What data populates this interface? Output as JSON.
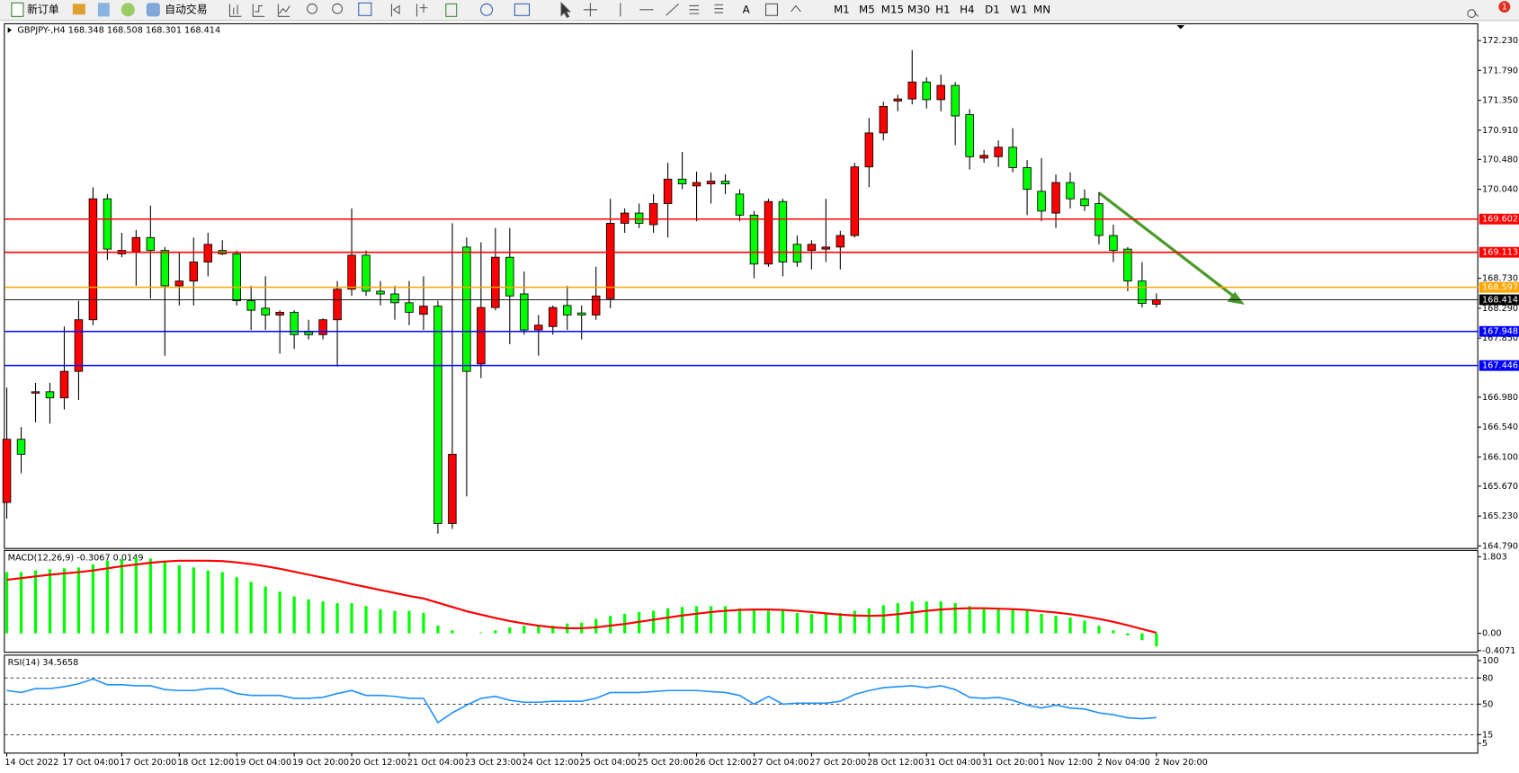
{
  "toolbar": {
    "new_order": "新订单",
    "auto_trading": "自动交易",
    "text_tool": "A",
    "timeframes": [
      "M1",
      "M5",
      "M15",
      "M30",
      "H1",
      "H4",
      "D1",
      "W1",
      "MN"
    ],
    "notifications": 1
  },
  "chart_data": [
    {
      "type": "candlestick",
      "title": "GBPJPY-,H4  168.348 168.508 168.301 168.414",
      "categories": [
        "14 Oct 2022",
        null,
        null,
        null,
        "17 Oct 04:00",
        null,
        null,
        null,
        "17 Oct 20:00",
        null,
        null,
        null,
        "18 Oct 12:00",
        null,
        null,
        null,
        "19 Oct 04:00",
        null,
        null,
        null,
        "19 Oct 20:00",
        null,
        null,
        null,
        "20 Oct 12:00",
        null,
        null,
        null,
        "21 Oct 04:00",
        null,
        null,
        null,
        "23 Oct 23:00",
        null,
        null,
        null,
        "24 Oct 12:00",
        null,
        null,
        null,
        "25 Oct 04:00",
        null,
        null,
        null,
        "25 Oct 20:00",
        null,
        null,
        null,
        "26 Oct 12:00",
        null,
        null,
        null,
        "27 Oct 04:00",
        null,
        null,
        null,
        "27 Oct 20:00",
        null,
        null,
        null,
        "28 Oct 12:00",
        null,
        null,
        null,
        "31 Oct 04:00",
        null,
        null,
        null,
        "31 Oct 20:00",
        null,
        null,
        null,
        "1 Nov 12:00",
        null,
        null,
        null,
        "2 Nov 04:00",
        null,
        null,
        null,
        "2 Nov 20:00"
      ],
      "ohlc": [
        [
          165.43,
          167.12,
          165.19,
          166.36
        ],
        [
          166.36,
          166.54,
          165.86,
          166.14
        ],
        [
          167.04,
          167.19,
          166.61,
          167.06
        ],
        [
          167.06,
          167.19,
          166.59,
          166.97
        ],
        [
          166.97,
          168.02,
          166.8,
          167.36
        ],
        [
          167.36,
          168.4,
          166.94,
          168.12
        ],
        [
          168.12,
          170.07,
          168.04,
          169.9
        ],
        [
          169.9,
          169.97,
          169.0,
          169.16
        ],
        [
          169.09,
          169.4,
          169.04,
          169.14
        ],
        [
          169.12,
          169.44,
          168.62,
          169.33
        ],
        [
          169.33,
          169.8,
          168.43,
          169.14
        ],
        [
          169.14,
          169.19,
          167.59,
          168.62
        ],
        [
          168.62,
          169.12,
          168.33,
          168.69
        ],
        [
          168.69,
          169.33,
          168.33,
          168.97
        ],
        [
          168.97,
          169.4,
          168.76,
          169.23
        ],
        [
          169.14,
          169.29,
          169.07,
          169.09
        ],
        [
          169.09,
          169.14,
          168.33,
          168.4
        ],
        [
          168.4,
          168.62,
          167.97,
          168.26
        ],
        [
          168.29,
          168.76,
          167.97,
          168.19
        ],
        [
          168.19,
          168.26,
          167.62,
          168.23
        ],
        [
          168.23,
          168.26,
          167.69,
          167.9
        ],
        [
          167.94,
          168.12,
          167.83,
          167.9
        ],
        [
          167.9,
          168.14,
          167.83,
          168.12
        ],
        [
          168.12,
          168.69,
          167.43,
          168.57
        ],
        [
          168.57,
          169.76,
          168.47,
          169.07
        ],
        [
          169.07,
          169.14,
          168.47,
          168.54
        ],
        [
          168.54,
          168.69,
          168.33,
          168.5
        ],
        [
          168.5,
          168.62,
          168.12,
          168.37
        ],
        [
          168.37,
          168.69,
          168.04,
          168.23
        ],
        [
          168.2,
          168.76,
          167.97,
          168.32
        ],
        [
          168.32,
          168.4,
          164.97,
          165.12
        ],
        [
          165.12,
          169.54,
          165.04,
          166.14
        ],
        [
          169.19,
          169.33,
          165.52,
          167.36
        ],
        [
          167.47,
          169.26,
          167.26,
          168.3
        ],
        [
          168.3,
          169.47,
          168.26,
          169.04
        ],
        [
          169.04,
          169.47,
          167.76,
          168.47
        ],
        [
          168.5,
          168.83,
          167.9,
          167.97
        ],
        [
          167.97,
          168.19,
          167.59,
          168.04
        ],
        [
          168.02,
          168.33,
          167.9,
          168.3
        ],
        [
          168.33,
          168.62,
          167.97,
          168.19
        ],
        [
          168.22,
          168.33,
          167.83,
          168.19
        ],
        [
          168.19,
          168.9,
          168.12,
          168.47
        ],
        [
          168.43,
          169.9,
          168.29,
          169.54
        ],
        [
          169.54,
          169.76,
          169.4,
          169.69
        ],
        [
          169.69,
          169.83,
          169.47,
          169.54
        ],
        [
          169.52,
          169.97,
          169.4,
          169.83
        ],
        [
          169.83,
          170.43,
          169.33,
          170.19
        ],
        [
          170.19,
          170.59,
          170.04,
          170.12
        ],
        [
          170.09,
          170.3,
          169.57,
          170.14
        ],
        [
          170.12,
          170.29,
          169.83,
          170.16
        ],
        [
          170.16,
          170.26,
          169.97,
          170.12
        ],
        [
          169.97,
          170.04,
          169.57,
          169.66
        ],
        [
          169.66,
          169.72,
          168.73,
          168.94
        ],
        [
          168.94,
          169.9,
          168.9,
          169.86
        ],
        [
          169.86,
          169.9,
          168.76,
          168.97
        ],
        [
          169.23,
          169.36,
          168.9,
          168.97
        ],
        [
          169.14,
          169.29,
          168.86,
          169.23
        ],
        [
          169.16,
          169.9,
          168.97,
          169.19
        ],
        [
          169.19,
          169.43,
          168.86,
          169.36
        ],
        [
          169.36,
          170.43,
          169.33,
          170.37
        ],
        [
          170.37,
          171.09,
          170.07,
          170.87
        ],
        [
          170.87,
          171.33,
          170.76,
          171.26
        ],
        [
          171.34,
          171.43,
          171.19,
          171.37
        ],
        [
          171.37,
          172.09,
          171.29,
          171.62
        ],
        [
          171.62,
          171.69,
          171.23,
          171.36
        ],
        [
          171.36,
          171.73,
          171.19,
          171.57
        ],
        [
          171.57,
          171.62,
          170.69,
          171.12
        ],
        [
          171.14,
          171.22,
          170.33,
          170.52
        ],
        [
          170.5,
          170.62,
          170.43,
          170.54
        ],
        [
          170.52,
          170.76,
          170.37,
          170.66
        ],
        [
          170.66,
          170.94,
          170.29,
          170.36
        ],
        [
          170.36,
          170.47,
          169.66,
          170.04
        ],
        [
          170.01,
          170.5,
          169.57,
          169.72
        ],
        [
          169.69,
          170.26,
          169.47,
          170.14
        ],
        [
          170.14,
          170.29,
          169.76,
          169.9
        ],
        [
          169.9,
          170.04,
          169.72,
          169.8
        ],
        [
          169.83,
          170.0,
          169.23,
          169.36
        ],
        [
          169.36,
          169.52,
          168.97,
          169.14
        ],
        [
          169.16,
          169.19,
          168.54,
          168.69
        ],
        [
          168.69,
          168.97,
          168.3,
          168.36
        ],
        [
          168.348,
          168.508,
          168.301,
          168.414
        ]
      ],
      "up_color": "#ff0000",
      "down_color": "#00ff00",
      "ylim": [
        164.76,
        172.47
      ],
      "yticks": [
        {
          "value": 172.23,
          "label": "172.230"
        },
        {
          "value": 171.79,
          "label": "171.790"
        },
        {
          "value": 171.35,
          "label": "171.350"
        },
        {
          "value": 170.91,
          "label": "170.910"
        },
        {
          "value": 170.48,
          "label": "170.480"
        },
        {
          "value": 170.04,
          "label": "170.040"
        },
        {
          "value": 168.73,
          "label": "168.730"
        },
        {
          "value": 168.29,
          "label": "168.290"
        },
        {
          "value": 167.85,
          "label": "167.850"
        },
        {
          "value": 166.98,
          "label": "166.980"
        },
        {
          "value": 166.54,
          "label": "166.540"
        },
        {
          "value": 166.1,
          "label": "166.100"
        },
        {
          "value": 165.67,
          "label": "165.670"
        },
        {
          "value": 165.23,
          "label": "165.230"
        },
        {
          "value": 164.79,
          "label": "164.790"
        }
      ],
      "levels": [
        {
          "value": 169.602,
          "color": "#ff0000"
        },
        {
          "value": 169.113,
          "color": "#ff0000"
        },
        {
          "value": 168.597,
          "color": "#ffa500"
        },
        {
          "value": 168.414,
          "color": "#000000"
        },
        {
          "value": 167.948,
          "color": "#0000ff"
        },
        {
          "value": 167.446,
          "color": "#0000ff"
        }
      ]
    },
    {
      "type": "macd",
      "title": "MACD(12,26,9) -0.3067 0.0149",
      "values": [
        1.44,
        1.44,
        1.48,
        1.51,
        1.53,
        1.55,
        1.62,
        1.71,
        1.74,
        1.78,
        1.76,
        1.67,
        1.6,
        1.55,
        1.48,
        1.44,
        1.32,
        1.21,
        1.1,
        0.98,
        0.87,
        0.8,
        0.75,
        0.71,
        0.71,
        0.64,
        0.57,
        0.53,
        0.53,
        0.48,
        0.18,
        0.07,
        0,
        0.02,
        0.07,
        0.14,
        0.18,
        0.18,
        0.18,
        0.23,
        0.25,
        0.34,
        0.41,
        0.46,
        0.5,
        0.53,
        0.59,
        0.62,
        0.64,
        0.64,
        0.64,
        0.59,
        0.57,
        0.53,
        0.53,
        0.48,
        0.46,
        0.46,
        0.48,
        0.53,
        0.59,
        0.66,
        0.71,
        0.75,
        0.75,
        0.75,
        0.71,
        0.64,
        0.59,
        0.57,
        0.57,
        0.53,
        0.46,
        0.41,
        0.37,
        0.3,
        0.18,
        0.07,
        -0.05,
        -0.16,
        -0.3067
      ],
      "signal": [
        1.26,
        1.3,
        1.34,
        1.38,
        1.41,
        1.44,
        1.48,
        1.53,
        1.58,
        1.62,
        1.66,
        1.69,
        1.71,
        1.71,
        1.71,
        1.7,
        1.67,
        1.63,
        1.58,
        1.52,
        1.45,
        1.38,
        1.31,
        1.24,
        1.16,
        1.09,
        1.02,
        0.95,
        0.88,
        0.82,
        0.72,
        0.62,
        0.52,
        0.44,
        0.36,
        0.29,
        0.23,
        0.18,
        0.14,
        0.12,
        0.12,
        0.14,
        0.18,
        0.22,
        0.27,
        0.32,
        0.37,
        0.42,
        0.46,
        0.5,
        0.53,
        0.55,
        0.56,
        0.56,
        0.55,
        0.53,
        0.5,
        0.47,
        0.44,
        0.42,
        0.41,
        0.42,
        0.45,
        0.49,
        0.53,
        0.56,
        0.58,
        0.59,
        0.59,
        0.58,
        0.57,
        0.55,
        0.52,
        0.49,
        0.45,
        0.4,
        0.34,
        0.27,
        0.19,
        0.1,
        0.0149
      ],
      "color": "#00ff00",
      "signal_color": "#ff0000",
      "ylim": [
        -0.434,
        1.94
      ],
      "yticks": [
        1.803,
        {
          "value": 0,
          "label": "0.00"
        },
        -0.4071
      ]
    },
    {
      "type": "line",
      "title": "RSI(14) 34.5658",
      "values": [
        65.6,
        63.3,
        67.8,
        67.8,
        70.0,
        73.3,
        78.9,
        72.2,
        72.2,
        71.1,
        71.1,
        66.7,
        65.6,
        65.6,
        67.8,
        67.8,
        62.2,
        60.0,
        60.0,
        60.0,
        56.7,
        56.7,
        57.8,
        62.2,
        65.6,
        60.0,
        60.0,
        58.9,
        56.7,
        56.7,
        28.9,
        40.0,
        48.9,
        56.7,
        58.9,
        54.4,
        52.2,
        52.2,
        53.3,
        53.3,
        53.3,
        56.7,
        63.3,
        63.3,
        63.3,
        64.4,
        65.6,
        65.6,
        65.6,
        64.4,
        63.3,
        60.0,
        50.0,
        58.9,
        50.0,
        51.1,
        51.1,
        51.1,
        53.3,
        61.1,
        65.6,
        68.9,
        70.0,
        71.1,
        68.9,
        71.1,
        66.7,
        57.8,
        56.7,
        57.8,
        54.4,
        48.9,
        45.6,
        48.9,
        45.6,
        44.4,
        40.0,
        37.8,
        34.4,
        33.3,
        34.5658
      ],
      "color": "#1e90ff",
      "ylim": [
        -5.6,
        105.6
      ],
      "yticks": [
        100,
        80,
        50,
        15,
        5
      ],
      "levels": [
        80,
        50,
        15
      ]
    }
  ]
}
